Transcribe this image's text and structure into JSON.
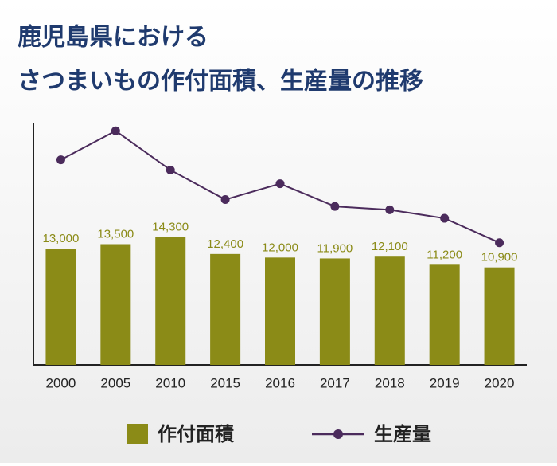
{
  "chart_data": {
    "type": "combo",
    "title": [
      "鹿児島県における",
      "さつまいもの作付面積、生産量の推移"
    ],
    "categories": [
      "2000",
      "2005",
      "2010",
      "2015",
      "2016",
      "2017",
      "2018",
      "2019",
      "2020"
    ],
    "series": [
      {
        "name": "作付面積",
        "type": "bar",
        "color": "#8b8b17",
        "values": [
          13000,
          13500,
          14300,
          12400,
          12000,
          11900,
          12100,
          11200,
          10900
        ],
        "value_labels": [
          "13,000",
          "13,500",
          "14,300",
          "12,400",
          "12,000",
          "11,900",
          "12,100",
          "11,200",
          "10,900"
        ]
      },
      {
        "name": "生産量",
        "type": "line",
        "color": "#4b2b5c",
        "axis": "y2",
        "values": [
          361000,
          412000,
          343000,
          291000,
          319000,
          279000,
          273000,
          258000,
          215000
        ]
      }
    ],
    "ylim": [
      0,
      27000
    ],
    "y2lim": [
      0,
      425000
    ]
  }
}
